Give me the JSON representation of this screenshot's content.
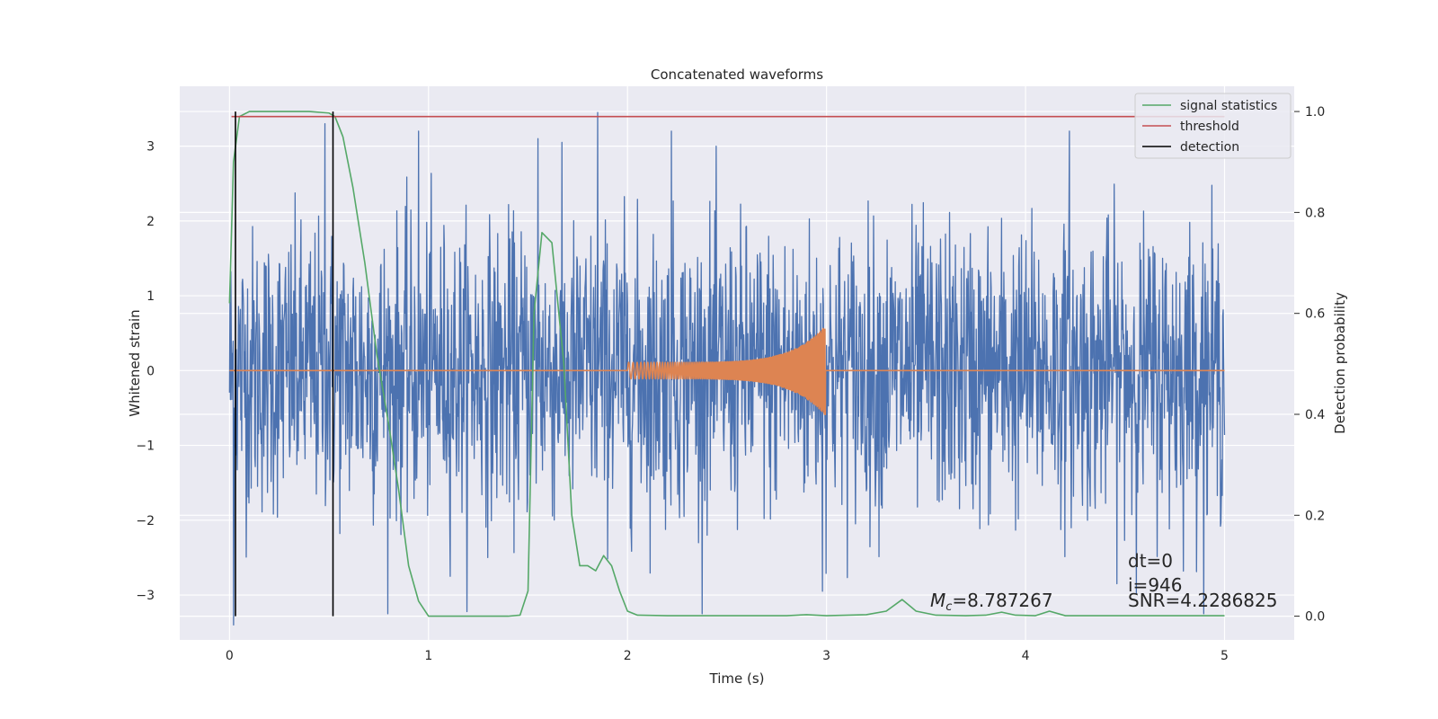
{
  "chart_data": {
    "type": "line",
    "title": "Concatenated waveforms",
    "xlabel": "Time (s)",
    "ylabel": "Whitened strain",
    "ylabel_right": "Detection probability",
    "xlim": [
      -0.25,
      5.35
    ],
    "ylim": [
      -3.6,
      3.8
    ],
    "ylim_right": [
      -0.047,
      1.05
    ],
    "x_ticks": [
      0,
      1,
      2,
      3,
      4,
      5
    ],
    "x_tick_labels": [
      "0",
      "1",
      "2",
      "3",
      "4",
      "5"
    ],
    "y_ticks": [
      -3,
      -2,
      -1,
      0,
      1,
      2,
      3
    ],
    "y_tick_labels": [
      "−3",
      "−2",
      "−1",
      "0",
      "1",
      "2",
      "3"
    ],
    "y_right_ticks": [
      0.0,
      0.2,
      0.4,
      0.6,
      0.8,
      1.0
    ],
    "y_right_tick_labels": [
      "0.0",
      "0.2",
      "0.4",
      "0.6",
      "0.8",
      "1.0"
    ],
    "grid": true,
    "legend_position": "top-right",
    "legend": [
      {
        "label": "signal statistics",
        "color": "#55a868"
      },
      {
        "label": "threshold",
        "color": "#c44e52"
      },
      {
        "label": "detection",
        "color": "#000000"
      }
    ],
    "series": [
      {
        "name": "whitened strain",
        "axis": "left",
        "color": "#4c72b0",
        "kind": "noise",
        "x_range": [
          0,
          5
        ],
        "samples": 2200,
        "typical_amplitude": 1.0,
        "peak_values": [
          {
            "x": 0.02,
            "y": -3.4
          },
          {
            "x": 0.48,
            "y": 3.3
          },
          {
            "x": 0.95,
            "y": 3.2
          },
          {
            "x": 1.55,
            "y": 3.1
          },
          {
            "x": 1.85,
            "y": 3.45
          },
          {
            "x": 2.22,
            "y": 3.2
          },
          {
            "x": 2.98,
            "y": -2.95
          },
          {
            "x": 4.22,
            "y": 3.2
          }
        ]
      },
      {
        "name": "injected waveform",
        "axis": "left",
        "color": "#dd8452",
        "kind": "chirp",
        "x_range": [
          0,
          5
        ],
        "chirp_start": 2.0,
        "chirp_end": 2.995,
        "start_amplitude": 0.11,
        "peak_amplitude": 0.6
      },
      {
        "name": "signal statistics",
        "axis": "right",
        "color": "#55a868",
        "x": [
          0.0,
          0.02,
          0.05,
          0.1,
          0.2,
          0.3,
          0.4,
          0.5,
          0.53,
          0.57,
          0.62,
          0.68,
          0.74,
          0.8,
          0.85,
          0.9,
          0.95,
          1.0,
          1.2,
          1.4,
          1.46,
          1.5,
          1.53,
          1.57,
          1.62,
          1.68,
          1.72,
          1.76,
          1.8,
          1.84,
          1.88,
          1.92,
          1.96,
          2.0,
          2.05,
          2.2,
          2.5,
          2.8,
          2.9,
          3.0,
          3.2,
          3.3,
          3.38,
          3.45,
          3.55,
          3.7,
          3.8,
          3.88,
          3.95,
          4.05,
          4.12,
          4.2,
          4.5,
          5.0
        ],
        "y": [
          0.62,
          0.9,
          0.99,
          1.0,
          1.0,
          1.0,
          1.0,
          0.997,
          0.99,
          0.95,
          0.85,
          0.7,
          0.52,
          0.38,
          0.25,
          0.1,
          0.03,
          0.0,
          0.0,
          0.0,
          0.002,
          0.05,
          0.6,
          0.76,
          0.74,
          0.5,
          0.2,
          0.1,
          0.1,
          0.09,
          0.12,
          0.1,
          0.05,
          0.01,
          0.002,
          0.001,
          0.001,
          0.001,
          0.003,
          0.001,
          0.003,
          0.01,
          0.033,
          0.01,
          0.002,
          0.001,
          0.002,
          0.008,
          0.002,
          0.001,
          0.01,
          0.001,
          0.001,
          0.001
        ]
      },
      {
        "name": "threshold",
        "axis": "right",
        "color": "#c44e52",
        "x": [
          0.01,
          5.0
        ],
        "y": [
          0.99,
          0.99
        ]
      }
    ],
    "detections": [
      0.03,
      0.52
    ],
    "annotations": {
      "mc_symbol": "M",
      "mc_subscript": "c",
      "mc_value": "=8.787267",
      "dt": "dt=0",
      "i": "i=946",
      "snr": "SNR=4.2286825"
    }
  }
}
